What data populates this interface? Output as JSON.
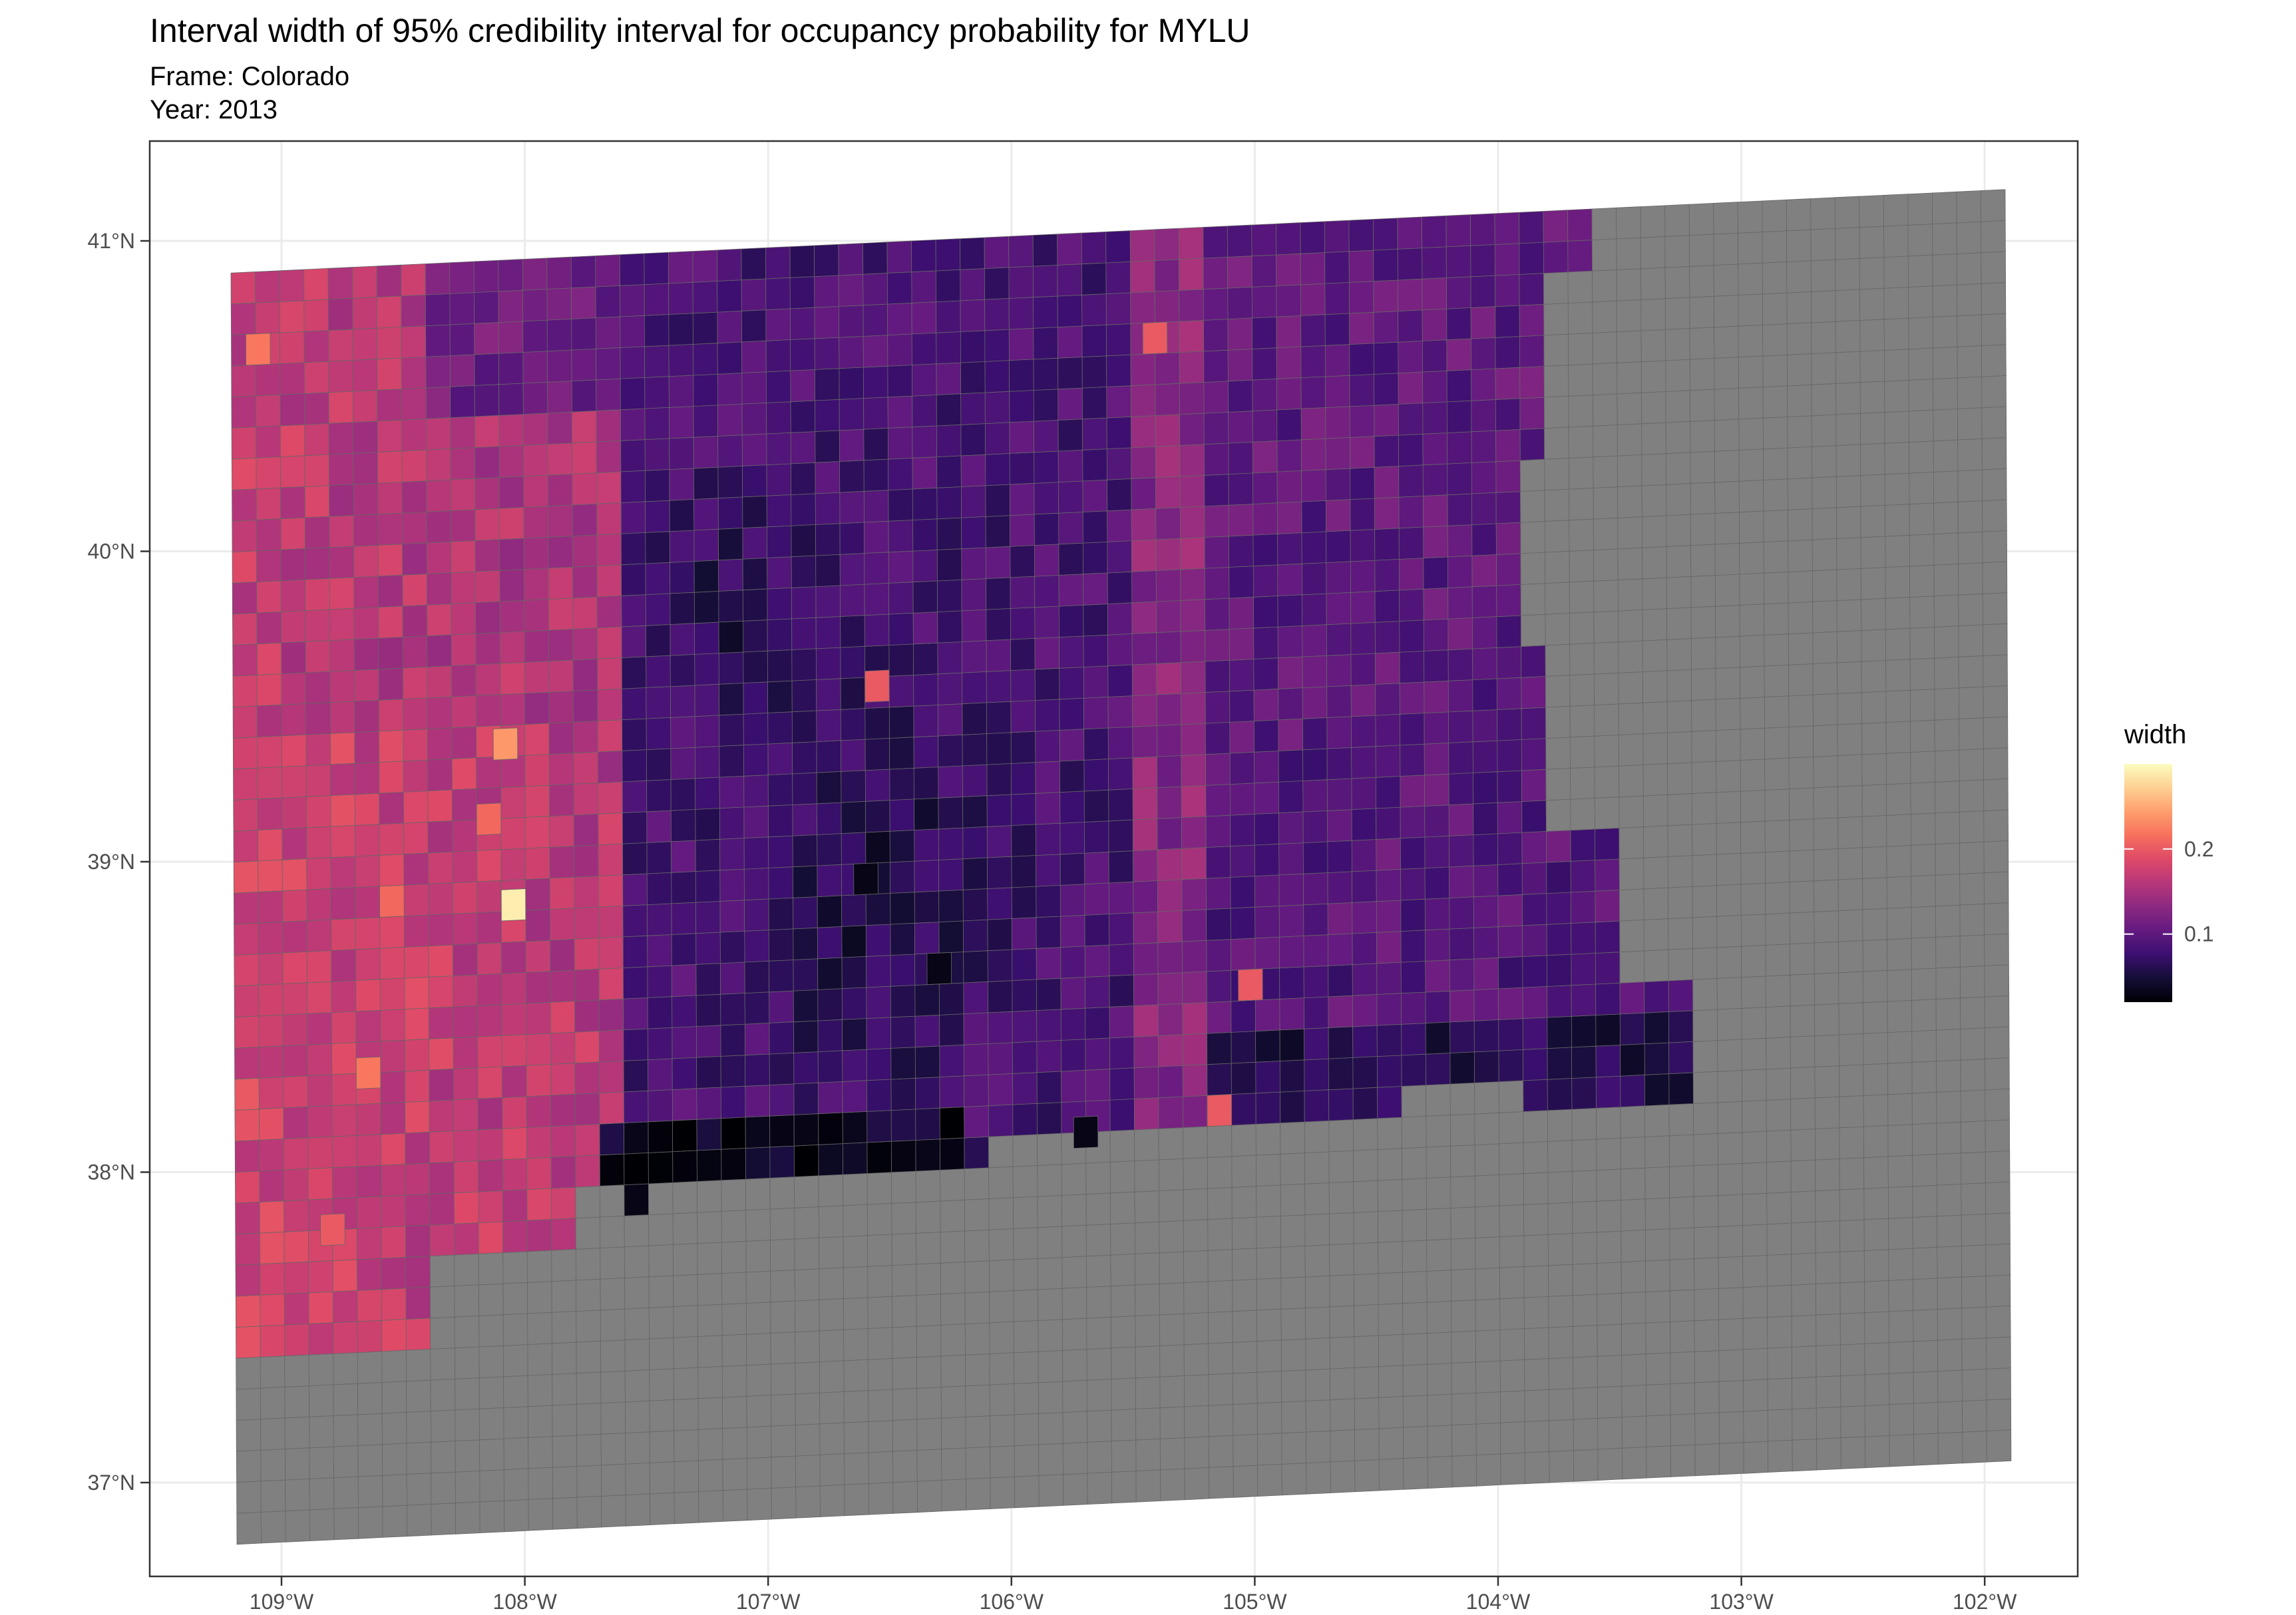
{
  "chart_data": {
    "type": "heatmap",
    "title": "Interval width of 95% credibility interval for occupancy probability for MYLU",
    "subtitle_lines": [
      "Frame: Colorado",
      "Year: 2013"
    ],
    "x_ticks": [
      "109°W",
      "108°W",
      "107°W",
      "106°W",
      "105°W",
      "104°W",
      "103°W",
      "102°W"
    ],
    "y_ticks": [
      "41°N",
      "40°N",
      "39°N",
      "38°N",
      "37°N"
    ],
    "legend": {
      "title": "width",
      "ticks": [
        "0.2",
        "0.1"
      ],
      "placement": "right",
      "range": [
        0.02,
        0.3
      ]
    },
    "colors": {
      "na_fill": "#808080",
      "cell_border": "#666666",
      "panel_border": "#333333",
      "grid": "#ebebeb",
      "scale_low": "#000004",
      "scale_high": "#fcfdbf"
    },
    "grid": true,
    "no_data_region": "eastern plains and southern band shown in grey (NA)",
    "hotspots": [
      {
        "lon": -108.05,
        "lat": 38.97,
        "width": 0.29
      },
      {
        "lon": -108.08,
        "lat": 39.49,
        "width": 0.24
      },
      {
        "lon": -109.09,
        "lat": 40.8,
        "width": 0.22
      },
      {
        "lon": -108.65,
        "lat": 38.45,
        "width": 0.22
      },
      {
        "lon": -108.55,
        "lat": 39.0,
        "width": 0.21
      },
      {
        "lon": -108.15,
        "lat": 39.25,
        "width": 0.21
      },
      {
        "lon": -105.4,
        "lat": 40.7,
        "width": 0.2
      },
      {
        "lon": -105.02,
        "lat": 38.6,
        "width": 0.2
      },
      {
        "lon": -105.15,
        "lat": 38.2,
        "width": 0.2
      },
      {
        "lon": -106.55,
        "lat": 39.62,
        "width": 0.2
      },
      {
        "lon": -108.8,
        "lat": 37.95,
        "width": 0.2
      }
    ],
    "lowspots": [
      {
        "lon": -106.6,
        "lat": 39.0,
        "width": 0.03
      },
      {
        "lon": -106.85,
        "lat": 38.2,
        "width": 0.03
      },
      {
        "lon": -106.3,
        "lat": 38.7,
        "width": 0.03
      },
      {
        "lon": -107.15,
        "lat": 39.8,
        "width": 0.04
      },
      {
        "lon": -105.7,
        "lat": 38.15,
        "width": 0.03
      },
      {
        "lon": -107.55,
        "lat": 38.0,
        "width": 0.03
      },
      {
        "lon": -103.45,
        "lat": 38.3,
        "width": 0.04
      }
    ]
  }
}
